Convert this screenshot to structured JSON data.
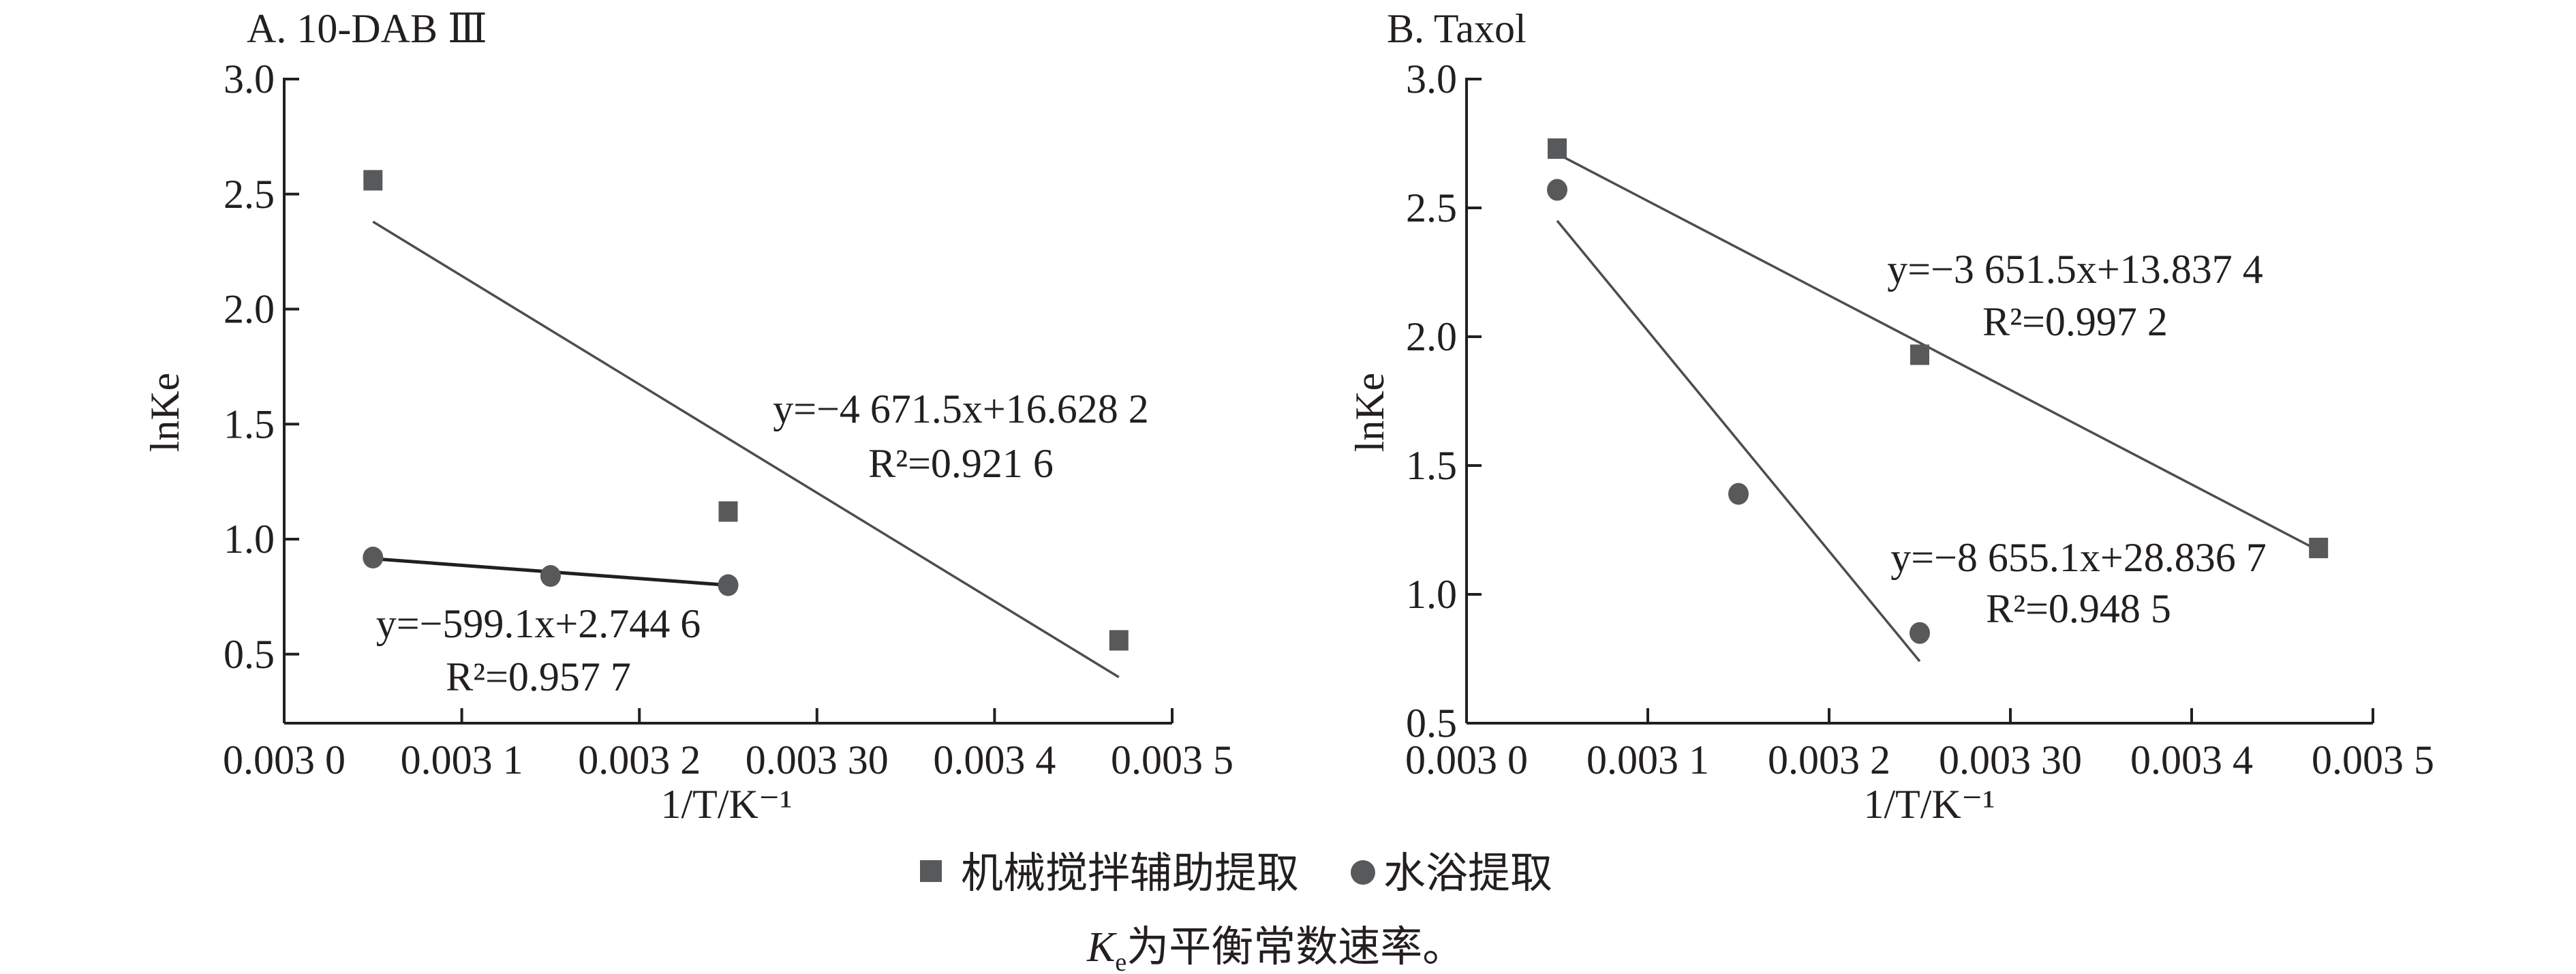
{
  "chart_data": [
    {
      "type": "scatter",
      "title": "A. 10-DAB Ⅲ",
      "xlabel": "1/T/K⁻¹",
      "ylabel": "lnKe",
      "xlim": [
        0.003,
        0.0035
      ],
      "ylim": [
        0.2,
        3.0
      ],
      "x_ticks": [
        0.003,
        0.0031,
        0.0032,
        0.0033,
        0.0034,
        0.0035
      ],
      "x_tick_labels": [
        "0.003 0",
        "0.003 1",
        "0.003 2",
        "0.003 30",
        "0.003 4",
        "0.003 5"
      ],
      "y_ticks": [
        0.5,
        1.0,
        1.5,
        2.0,
        2.5,
        3.0
      ],
      "y_tick_labels": [
        "0.5",
        "1.0",
        "1.5",
        "2.0",
        "2.5",
        "3.0"
      ],
      "grid": false,
      "series": [
        {
          "name": "机械搅拌辅助提取",
          "marker": "square",
          "x": [
            0.00305,
            0.00325,
            0.00347
          ],
          "y": [
            2.56,
            1.12,
            0.56
          ],
          "fit": {
            "x": [
              0.00305,
              0.00347
            ],
            "y": [
              2.38,
              0.4
            ]
          },
          "equation": "y=−4 671.5x+16.628 2",
          "r2": "R²=0.921 6"
        },
        {
          "name": "水浴提取",
          "marker": "circle",
          "x": [
            0.00305,
            0.00315,
            0.00325
          ],
          "y": [
            0.92,
            0.84,
            0.8
          ],
          "fit": {
            "x": [
              0.00305,
              0.00325
            ],
            "y": [
              0.915,
              0.8
            ]
          },
          "equation": "y=−599.1x+2.744 6",
          "r2": "R²=0.957 7"
        }
      ]
    },
    {
      "type": "scatter",
      "title": "B. Taxol",
      "xlabel": "1/T/K⁻¹",
      "ylabel": "lnKe",
      "xlim": [
        0.003,
        0.0035
      ],
      "ylim": [
        0.5,
        3.0
      ],
      "x_ticks": [
        0.003,
        0.0031,
        0.0032,
        0.0033,
        0.0034,
        0.0035
      ],
      "x_tick_labels": [
        "0.003 0",
        "0.003 1",
        "0.003 2",
        "0.003 30",
        "0.003 4",
        "0.003 5"
      ],
      "y_ticks": [
        0.5,
        1.0,
        1.5,
        2.0,
        2.5,
        3.0
      ],
      "y_tick_labels": [
        "0.5",
        "1.0",
        "1.5",
        "2.0",
        "2.5",
        "3.0"
      ],
      "grid": false,
      "series": [
        {
          "name": "机械搅拌辅助提取",
          "marker": "square",
          "x": [
            0.00305,
            0.00325,
            0.00347
          ],
          "y": [
            2.73,
            1.93,
            1.18
          ],
          "fit": {
            "x": [
              0.00305,
              0.00347
            ],
            "y": [
              2.71,
              1.17
            ]
          },
          "equation": "y=−3 651.5x+13.837 4",
          "r2": "R²=0.997 2"
        },
        {
          "name": "水浴提取",
          "marker": "circle",
          "x": [
            0.00305,
            0.00315,
            0.00325
          ],
          "y": [
            2.57,
            1.39,
            0.85
          ],
          "fit": {
            "x": [
              0.00305,
              0.00325
            ],
            "y": [
              2.45,
              0.74
            ]
          },
          "equation": "y=−8 655.1x+28.836 7",
          "r2": "R²=0.948 5"
        }
      ]
    }
  ],
  "legend": {
    "items": [
      {
        "label": "机械搅拌辅助提取",
        "marker": "square"
      },
      {
        "label": "水浴提取",
        "marker": "circle"
      }
    ],
    "placement": "bottom-center"
  },
  "caption": {
    "symbol": "K",
    "subscript": "e",
    "text": "为平衡常数速率。"
  },
  "colors": {
    "marker": "#58595b",
    "axis": "#231f20",
    "fit_line": "#4d4d4f"
  }
}
